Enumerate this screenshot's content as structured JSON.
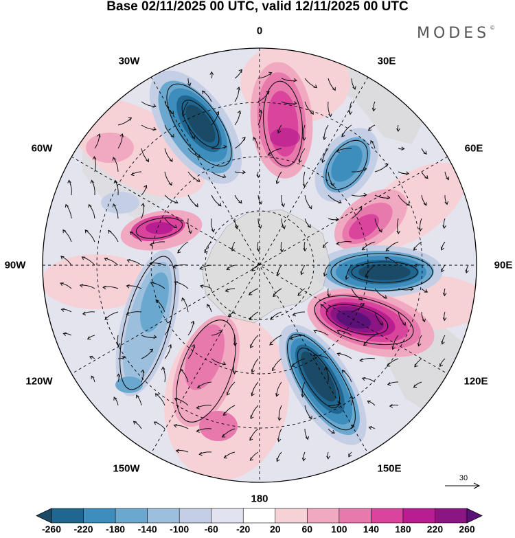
{
  "title": "Base 02/11/2025 00 UTC, valid 12/11/2025 00 UTC",
  "brand": "MODES",
  "brand_mark": "©",
  "longitude_labels": {
    "top": "0",
    "e30": "30E",
    "e60": "60E",
    "e90": "90E",
    "e120": "120E",
    "e150": "150E",
    "bottom": "180",
    "w150": "150W",
    "w120": "120W",
    "w90": "90W",
    "w60": "60W",
    "w30": "30W"
  },
  "reference_vector_label": "30",
  "colorbar": {
    "tick_labels": [
      "-260",
      "-220",
      "-180",
      "-140",
      "-100",
      "-60",
      "-20",
      "20",
      "60",
      "100",
      "140",
      "180",
      "220",
      "260"
    ],
    "colors": [
      "#1b4a66",
      "#1f6690",
      "#3d8dbd",
      "#6aa8d0",
      "#9cbfde",
      "#c4cfe6",
      "#e2e2f0",
      "#ffffff",
      "#f6d2d6",
      "#f0a9c0",
      "#e879ad",
      "#d9459d",
      "#b81e8f",
      "#8a1583",
      "#5c1178"
    ]
  },
  "colors": {
    "land": "#d8d8d8",
    "antarctica": "#dcdcdc",
    "grid": "#000000"
  }
}
